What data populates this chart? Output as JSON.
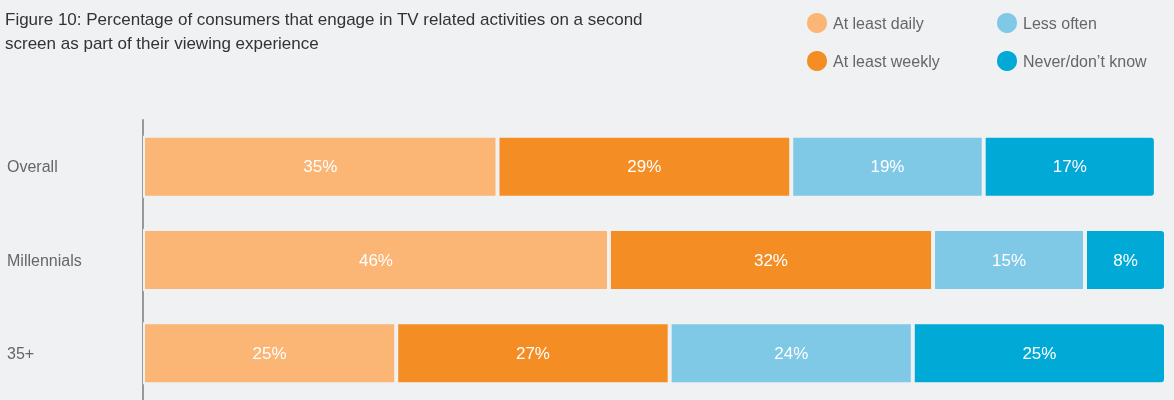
{
  "chart_data": {
    "type": "bar",
    "orientation": "horizontal",
    "stacked": true,
    "title": "Figure 10: Percentage of consumers that engage in TV related activities on a second screen as part of their viewing experience",
    "categories": [
      "Overall",
      "Millennials",
      "35+"
    ],
    "series": [
      {
        "name": "At least daily",
        "color": "#fbb574",
        "values": [
          35,
          46,
          25
        ],
        "value_labels": [
          "35%",
          "46%",
          "25%"
        ]
      },
      {
        "name": "At least weekly",
        "color": "#f48d23",
        "values": [
          29,
          32,
          27
        ],
        "value_labels": [
          "29%",
          "32%",
          "27%"
        ]
      },
      {
        "name": "Less often",
        "color": "#7fc8e6",
        "values": [
          19,
          15,
          24
        ],
        "value_labels": [
          "19%",
          "15%",
          "24%"
        ]
      },
      {
        "name": "Never/don’t know",
        "color": "#00a9d6",
        "values": [
          17,
          8,
          25
        ],
        "value_labels": [
          "17%",
          "8%",
          "25%"
        ]
      }
    ],
    "legend": "top right"
  }
}
